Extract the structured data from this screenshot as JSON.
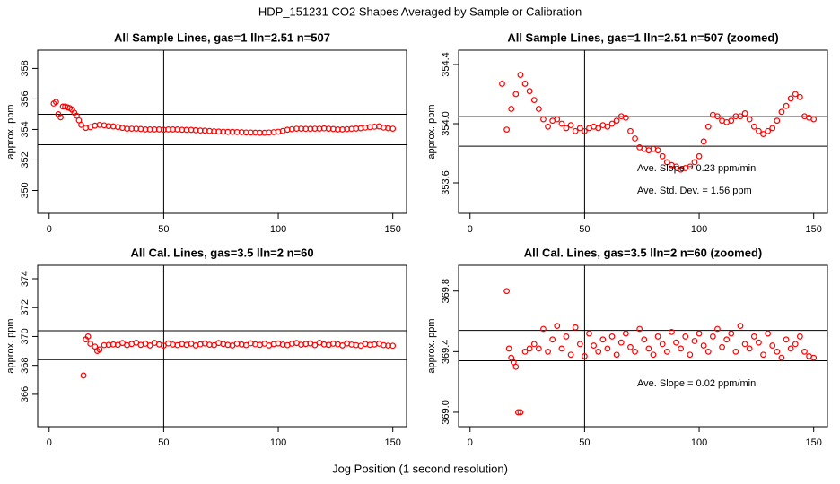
{
  "title": "HDP_151231  CO2 Shapes Averaged by Sample or Calibration",
  "xlabel": "Jog Position (1 second resolution)",
  "chart_data": [
    {
      "type": "scatter",
      "title": "All Sample Lines, gas=1 lln=2.51 n=507",
      "ylabel": "approx. ppm",
      "color": "#ff0000",
      "xlim": [
        -5,
        156
      ],
      "xticks": [
        0,
        50,
        100,
        150
      ],
      "ylim": [
        348.5,
        359.2
      ],
      "yticks": [
        350,
        352,
        354,
        356,
        358
      ],
      "hlines": [
        355,
        353
      ],
      "vlines": [
        50
      ],
      "x": [
        2,
        3,
        4,
        5,
        6,
        7,
        8,
        9,
        10,
        11,
        12,
        13,
        14,
        16,
        18,
        20,
        22,
        24,
        26,
        28,
        30,
        32,
        34,
        36,
        38,
        40,
        42,
        44,
        46,
        48,
        50,
        52,
        54,
        56,
        58,
        60,
        62,
        64,
        66,
        68,
        70,
        72,
        74,
        76,
        78,
        80,
        82,
        84,
        86,
        88,
        90,
        92,
        94,
        96,
        98,
        100,
        102,
        104,
        106,
        108,
        110,
        112,
        114,
        116,
        118,
        120,
        122,
        124,
        126,
        128,
        130,
        132,
        134,
        136,
        138,
        140,
        142,
        144,
        146,
        148,
        150
      ],
      "values": [
        355.7,
        355.8,
        355.0,
        354.8,
        355.5,
        355.5,
        355.45,
        355.4,
        355.3,
        355.1,
        354.9,
        354.6,
        354.3,
        354.1,
        354.15,
        354.25,
        354.3,
        354.27,
        354.22,
        354.2,
        354.16,
        354.1,
        354.05,
        354.05,
        354.05,
        354.03,
        354.0,
        354.0,
        354.0,
        354.0,
        353.98,
        354.0,
        354.0,
        354.0,
        353.98,
        353.97,
        353.97,
        353.95,
        353.93,
        353.92,
        353.9,
        353.88,
        353.86,
        353.85,
        353.84,
        353.84,
        353.83,
        353.82,
        353.8,
        353.8,
        353.79,
        353.78,
        353.78,
        353.8,
        353.82,
        353.85,
        353.9,
        353.98,
        354.02,
        354.05,
        354.05,
        354.04,
        354.04,
        354.05,
        354.05,
        354.07,
        354.05,
        354.03,
        354.0,
        354.0,
        354.02,
        354.04,
        354.06,
        354.08,
        354.12,
        354.15,
        354.18,
        354.2,
        354.12,
        354.08,
        354.05
      ]
    },
    {
      "type": "scatter",
      "title": "All Sample Lines, gas=1 lln=2.51 n=507 (zoomed)",
      "ylabel": "approx. ppm",
      "color": "#ff0000",
      "xlim": [
        -5,
        156
      ],
      "xticks": [
        0,
        50,
        100,
        150
      ],
      "ylim": [
        353.394,
        354.497
      ],
      "yticks": [
        353.6,
        {
          "value": 354,
          "label": "354.0"
        },
        354.4
      ],
      "hlines": [
        354.048,
        353.848
      ],
      "vlines": [
        50
      ],
      "annotations": [
        "Ave. Slope =  0.23  ppm/min",
        "Ave. Std. Dev. =  1.56  ppm"
      ],
      "x": [
        14,
        16,
        18,
        20,
        22,
        24,
        26,
        28,
        30,
        32,
        34,
        36,
        38,
        40,
        42,
        44,
        46,
        48,
        50,
        52,
        54,
        56,
        58,
        60,
        62,
        64,
        66,
        68,
        70,
        72,
        74,
        76,
        78,
        80,
        82,
        84,
        86,
        88,
        90,
        92,
        94,
        96,
        98,
        100,
        102,
        104,
        106,
        108,
        110,
        112,
        114,
        116,
        118,
        120,
        122,
        124,
        126,
        128,
        130,
        132,
        134,
        136,
        138,
        140,
        142,
        144,
        146,
        148,
        150
      ],
      "values": [
        354.27,
        353.96,
        354.1,
        354.2,
        354.33,
        354.27,
        354.22,
        354.16,
        354.1,
        354.03,
        353.98,
        354.02,
        354.03,
        354.0,
        353.97,
        353.99,
        353.95,
        353.97,
        353.95,
        353.97,
        353.98,
        353.97,
        353.99,
        353.98,
        354.0,
        354.02,
        354.05,
        354.04,
        353.95,
        353.9,
        353.84,
        353.83,
        353.82,
        353.83,
        353.82,
        353.78,
        353.74,
        353.72,
        353.71,
        353.69,
        353.7,
        353.71,
        353.74,
        353.78,
        353.88,
        353.98,
        354.06,
        354.05,
        354.02,
        354.01,
        354.02,
        354.05,
        354.05,
        354.07,
        354.03,
        353.98,
        353.95,
        353.93,
        353.95,
        353.97,
        354.02,
        354.08,
        354.12,
        354.17,
        354.2,
        354.18,
        354.05,
        354.04,
        354.03
      ]
    },
    {
      "type": "scatter",
      "title": "All Cal. Lines, gas=3.5 lln=2 n=60",
      "ylabel": "approx. ppm",
      "color": "#ff0000",
      "xlim": [
        -5,
        156
      ],
      "xticks": [
        0,
        50,
        100,
        150
      ],
      "ylim": [
        363.76,
        374.93
      ],
      "yticks": [
        366,
        368,
        370,
        372,
        374
      ],
      "hlines": [
        370.4,
        368.4
      ],
      "vlines": [
        50
      ],
      "x": [
        15,
        16,
        17,
        18,
        20,
        21,
        22,
        24,
        26,
        28,
        30,
        32,
        34,
        36,
        38,
        40,
        42,
        44,
        46,
        48,
        50,
        52,
        54,
        56,
        58,
        60,
        62,
        64,
        66,
        68,
        70,
        72,
        74,
        76,
        78,
        80,
        82,
        84,
        86,
        88,
        90,
        92,
        94,
        96,
        98,
        100,
        102,
        104,
        106,
        108,
        110,
        112,
        114,
        116,
        118,
        120,
        122,
        124,
        126,
        128,
        130,
        132,
        134,
        136,
        138,
        140,
        142,
        144,
        146,
        148,
        150
      ],
      "values": [
        367.3,
        369.8,
        370.0,
        369.5,
        369.3,
        369.0,
        369.1,
        369.4,
        369.42,
        369.45,
        369.42,
        369.55,
        369.4,
        369.48,
        369.57,
        369.42,
        369.5,
        369.38,
        369.56,
        369.45,
        369.37,
        369.52,
        369.44,
        369.4,
        369.48,
        369.42,
        369.5,
        369.38,
        369.46,
        369.52,
        369.43,
        369.4,
        369.55,
        369.48,
        369.42,
        369.38,
        369.5,
        369.45,
        369.4,
        369.53,
        369.46,
        369.42,
        369.5,
        369.38,
        369.47,
        369.52,
        369.44,
        369.4,
        369.5,
        369.55,
        369.43,
        369.48,
        369.52,
        369.4,
        369.57,
        369.45,
        369.42,
        369.5,
        369.46,
        369.38,
        369.52,
        369.44,
        369.4,
        369.36,
        369.48,
        369.42,
        369.45,
        369.5,
        369.4,
        369.37,
        369.36
      ]
    },
    {
      "type": "scatter",
      "title": "All Cal. Lines, gas=3.5 lln=2 n=60 (zoomed)",
      "ylabel": "approx. ppm",
      "color": "#ff0000",
      "xlim": [
        -5,
        156
      ],
      "xticks": [
        0,
        50,
        100,
        150
      ],
      "ylim": [
        368.905,
        369.97
      ],
      "yticks": [
        {
          "value": 369,
          "label": "369.0"
        },
        369.4,
        369.8
      ],
      "hlines": [
        369.54,
        369.34
      ],
      "vlines": [
        50
      ],
      "annotations": [
        "Ave. Slope =  0.02  ppm/min"
      ],
      "x": [
        16,
        17,
        18,
        19,
        20,
        21,
        22,
        24,
        26,
        28,
        30,
        32,
        34,
        36,
        38,
        40,
        42,
        44,
        46,
        48,
        50,
        52,
        54,
        56,
        58,
        60,
        62,
        64,
        66,
        68,
        70,
        72,
        74,
        76,
        78,
        80,
        82,
        84,
        86,
        88,
        90,
        92,
        94,
        96,
        98,
        100,
        102,
        104,
        106,
        108,
        110,
        112,
        114,
        116,
        118,
        120,
        122,
        124,
        126,
        128,
        130,
        132,
        134,
        136,
        138,
        140,
        142,
        144,
        146,
        148,
        150
      ],
      "values": [
        369.8,
        369.42,
        369.36,
        369.33,
        369.3,
        369.0,
        369.0,
        369.4,
        369.42,
        369.45,
        369.42,
        369.55,
        369.4,
        369.48,
        369.57,
        369.42,
        369.5,
        369.38,
        369.56,
        369.45,
        369.37,
        369.52,
        369.44,
        369.4,
        369.48,
        369.42,
        369.5,
        369.38,
        369.46,
        369.52,
        369.43,
        369.4,
        369.55,
        369.48,
        369.42,
        369.38,
        369.5,
        369.45,
        369.4,
        369.53,
        369.46,
        369.42,
        369.5,
        369.38,
        369.47,
        369.52,
        369.44,
        369.4,
        369.5,
        369.55,
        369.43,
        369.48,
        369.52,
        369.4,
        369.57,
        369.45,
        369.42,
        369.5,
        369.46,
        369.38,
        369.52,
        369.44,
        369.4,
        369.36,
        369.48,
        369.42,
        369.45,
        369.5,
        369.4,
        369.37,
        369.36
      ]
    }
  ]
}
